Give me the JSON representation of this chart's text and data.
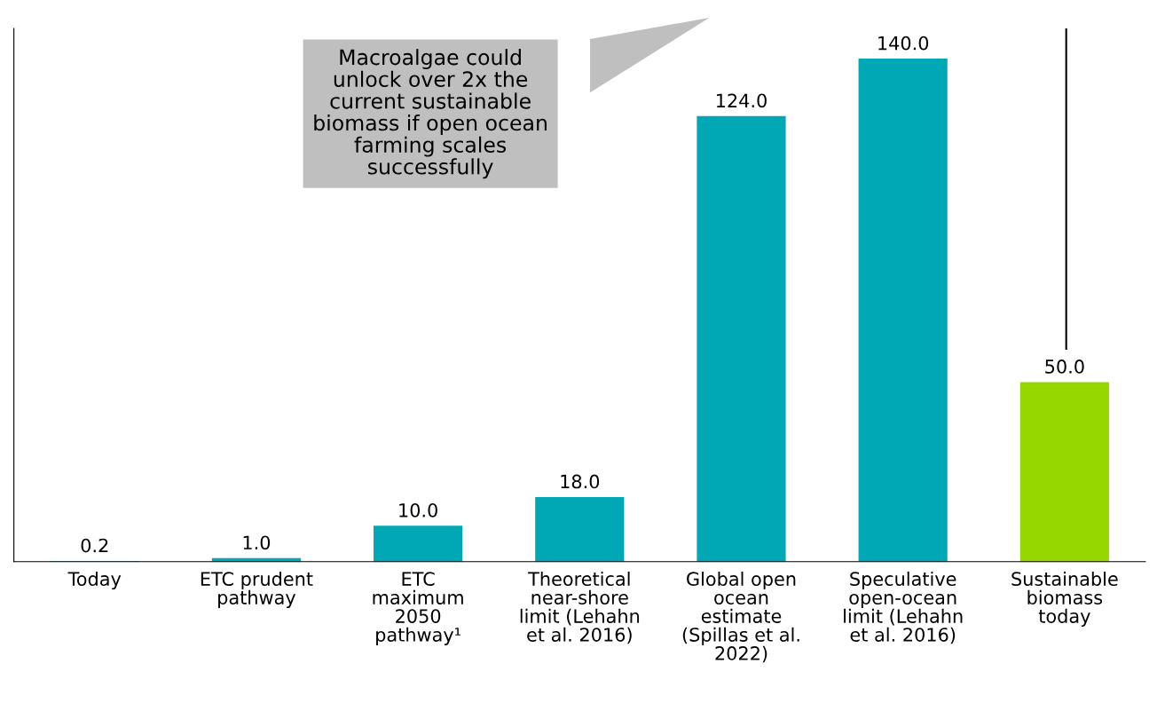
{
  "chart_data": {
    "type": "bar",
    "categories": [
      "Today",
      "ETC prudent\npathway",
      "ETC\nmaximum\n2050\npathway¹",
      "Theoretical\nnear-shore\nlimit (Lehahn\net al. 2016)",
      "Global open\nocean\nestimate\n(Spillas et al.\n2022)",
      "Speculative\nopen-ocean\nlimit (Lehahn\net al. 2016)",
      "Sustainable\nbiomass\ntoday"
    ],
    "values": [
      0.2,
      1.0,
      10.0,
      18.0,
      124.0,
      140.0,
      50.0
    ],
    "colors": [
      "#00a8b5",
      "#00a8b5",
      "#00a8b5",
      "#00a8b5",
      "#00a8b5",
      "#00a8b5",
      "#96d700"
    ],
    "value_labels": [
      "0.2",
      "1.0",
      "10.0",
      "18.0",
      "124.0",
      "140.0",
      "50.0"
    ],
    "annotations": [
      "Macroalgae could\nunlock over 2x the\ncurrent sustainable\nbiomass if open ocean\nfarming scales\nsuccessfully"
    ],
    "grid": false,
    "legend": false
  }
}
